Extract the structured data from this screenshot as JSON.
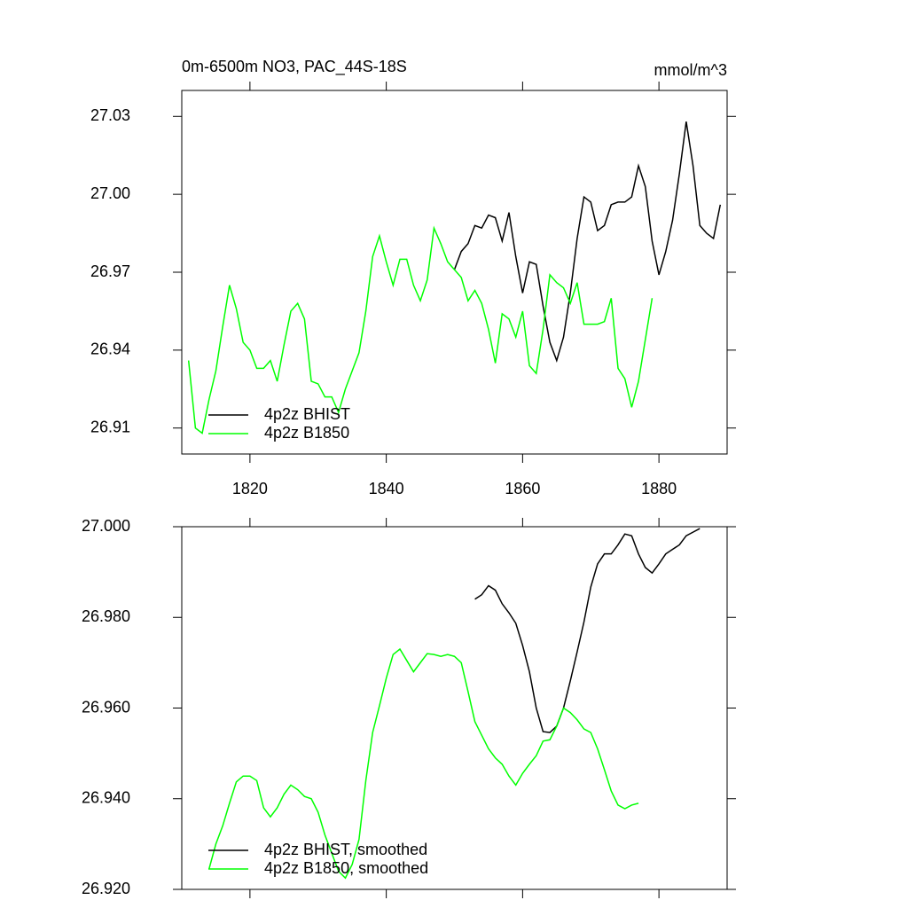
{
  "chart_data": [
    {
      "type": "line",
      "title": "0m-6500m NO3, PAC_44S-18S",
      "units": "mmol/m^3",
      "xlim": [
        1810,
        1890
      ],
      "xticks": [
        1820,
        1840,
        1860,
        1880
      ],
      "ylim": [
        26.9,
        27.04
      ],
      "yticks": [
        27.03,
        {
          "value": 27,
          "label": "27.00"
        },
        26.97,
        26.94,
        26.91
      ],
      "legend": "lower left",
      "series": [
        {
          "name": "4p2z BHIST",
          "color": "#000000",
          "x": [
            1850,
            1851,
            1852,
            1853,
            1854,
            1855,
            1856,
            1857,
            1858,
            1859,
            1860,
            1861,
            1862,
            1863,
            1864,
            1865,
            1866,
            1867,
            1868,
            1869,
            1870,
            1871,
            1872,
            1873,
            1874,
            1875,
            1876,
            1877,
            1878,
            1879,
            1880,
            1881,
            1882,
            1883,
            1884,
            1885,
            1886,
            1887,
            1888,
            1889
          ],
          "values": [
            26.971,
            26.978,
            26.981,
            26.988,
            26.987,
            26.992,
            26.991,
            26.982,
            26.993,
            26.976,
            26.962,
            26.974,
            26.973,
            26.957,
            26.943,
            26.936,
            26.945,
            26.962,
            26.983,
            26.999,
            26.997,
            26.986,
            26.988,
            26.996,
            26.997,
            26.997,
            26.999,
            27.011,
            27.003,
            26.982,
            26.969,
            26.978,
            26.99,
            27.008,
            27.028,
            27.011,
            26.988,
            26.985,
            26.983,
            26.996
          ]
        },
        {
          "name": "4p2z B1850",
          "color": "#00ff00",
          "x": [
            1811,
            1812,
            1813,
            1814,
            1815,
            1816,
            1817,
            1818,
            1819,
            1820,
            1821,
            1822,
            1823,
            1824,
            1825,
            1826,
            1827,
            1828,
            1829,
            1830,
            1831,
            1832,
            1833,
            1834,
            1835,
            1836,
            1837,
            1838,
            1839,
            1840,
            1841,
            1842,
            1843,
            1844,
            1845,
            1846,
            1847,
            1848,
            1849,
            1850,
            1851,
            1852,
            1853,
            1854,
            1855,
            1856,
            1857,
            1858,
            1859,
            1860,
            1861,
            1862,
            1863,
            1864,
            1865,
            1866,
            1867,
            1868,
            1869,
            1870,
            1871,
            1872,
            1873,
            1874,
            1875,
            1876,
            1877,
            1878,
            1879
          ],
          "values": [
            26.936,
            26.91,
            26.908,
            26.921,
            26.932,
            26.949,
            26.965,
            26.956,
            26.943,
            26.94,
            26.933,
            26.933,
            26.936,
            26.928,
            26.942,
            26.955,
            26.958,
            26.952,
            26.928,
            26.927,
            26.922,
            26.922,
            26.916,
            26.925,
            26.932,
            26.939,
            26.955,
            26.976,
            26.984,
            26.974,
            26.965,
            26.975,
            26.975,
            26.965,
            26.959,
            26.967,
            26.987,
            26.981,
            26.974,
            26.971,
            26.968,
            26.959,
            26.963,
            26.958,
            26.948,
            26.935,
            26.954,
            26.952,
            26.945,
            26.955,
            26.934,
            26.931,
            26.948,
            26.969,
            26.966,
            26.964,
            26.958,
            26.966,
            26.95,
            26.95,
            26.95,
            26.951,
            26.96,
            26.933,
            26.929,
            26.918,
            26.928,
            26.944,
            26.96
          ]
        }
      ]
    },
    {
      "type": "line",
      "xlim": [
        1810,
        1890
      ],
      "xticks": [
        1820,
        1840,
        1860,
        1880
      ],
      "ylim": [
        26.92,
        27.0
      ],
      "yticks": [
        {
          "value": 27,
          "label": "27.000"
        },
        {
          "value": 26.98,
          "label": "26.980"
        },
        {
          "value": 26.96,
          "label": "26.960"
        },
        {
          "value": 26.94,
          "label": "26.940"
        },
        {
          "value": 26.92,
          "label": "26.920"
        }
      ],
      "legend": "lower left",
      "series": [
        {
          "name": "4p2z BHIST, smoothed",
          "color": "#000000",
          "x": [
            1853,
            1854,
            1855,
            1856,
            1857,
            1858,
            1859,
            1860,
            1861,
            1862,
            1863,
            1864,
            1865,
            1866,
            1867,
            1868,
            1869,
            1870,
            1871,
            1872,
            1873,
            1874,
            1875,
            1876,
            1877,
            1878,
            1879,
            1880,
            1881,
            1882,
            1883,
            1884,
            1885,
            1886
          ],
          "values": [
            26.984,
            26.985,
            26.987,
            26.986,
            26.983,
            26.981,
            26.9787,
            26.9738,
            26.968,
            26.96,
            26.9548,
            26.9546,
            26.956,
            26.96,
            26.966,
            26.9724,
            26.979,
            26.9867,
            26.9918,
            26.994,
            26.994,
            26.996,
            26.9984,
            26.998,
            26.994,
            26.991,
            26.9898,
            26.9918,
            26.994,
            26.995,
            26.996,
            26.998,
            26.9988,
            26.9996
          ]
        },
        {
          "name": "4p2z B1850, smoothed",
          "color": "#00ff00",
          "x": [
            1814,
            1815,
            1816,
            1817,
            1818,
            1819,
            1820,
            1821,
            1822,
            1823,
            1824,
            1825,
            1826,
            1827,
            1828,
            1829,
            1830,
            1831,
            1832,
            1833,
            1834,
            1835,
            1836,
            1837,
            1838,
            1839,
            1840,
            1841,
            1842,
            1843,
            1844,
            1845,
            1846,
            1847,
            1848,
            1849,
            1850,
            1851,
            1852,
            1853,
            1854,
            1855,
            1856,
            1857,
            1858,
            1859,
            1860,
            1861,
            1862,
            1863,
            1864,
            1865,
            1866,
            1867,
            1868,
            1869,
            1870,
            1871,
            1872,
            1873,
            1874,
            1875,
            1876,
            1877
          ],
          "values": [
            26.9245,
            26.93,
            26.934,
            26.939,
            26.9437,
            26.945,
            26.945,
            26.944,
            26.938,
            26.936,
            26.938,
            26.941,
            26.943,
            26.942,
            26.9405,
            26.94,
            26.937,
            26.932,
            26.928,
            26.924,
            26.9225,
            26.9255,
            26.931,
            26.944,
            26.9546,
            26.9605,
            26.9666,
            26.9718,
            26.973,
            26.9705,
            26.968,
            26.97,
            26.972,
            26.9718,
            26.9714,
            26.9718,
            26.9714,
            26.97,
            26.9636,
            26.957,
            26.954,
            26.951,
            26.949,
            26.9476,
            26.945,
            26.943,
            26.9456,
            26.9476,
            26.9495,
            26.9527,
            26.953,
            26.956,
            26.96,
            26.959,
            26.9574,
            26.9554,
            26.9546,
            26.951,
            26.9464,
            26.9417,
            26.9386,
            26.9378,
            26.9386,
            26.939
          ]
        }
      ]
    }
  ]
}
